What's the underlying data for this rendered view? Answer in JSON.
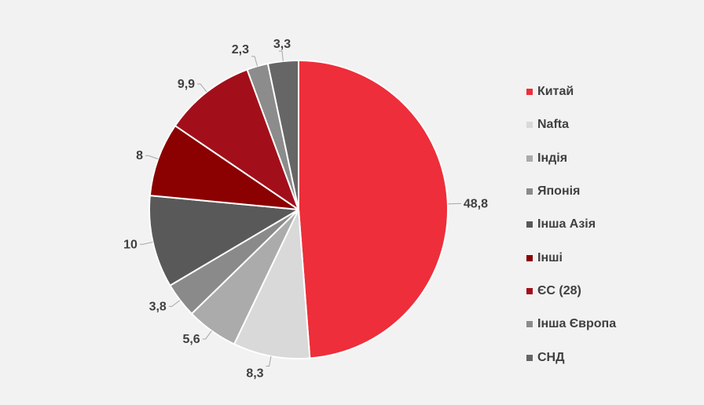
{
  "chart_data": {
    "type": "pie",
    "title": "",
    "legend_position": "right",
    "slices": [
      {
        "name": "Китай",
        "value": 48.8,
        "label": "48,8",
        "color": "#ee2e3a"
      },
      {
        "name": "Nafta",
        "value": 8.3,
        "label": "8,3",
        "color": "#d9d9d9"
      },
      {
        "name": "Індія",
        "value": 5.6,
        "label": "5,6",
        "color": "#ababab"
      },
      {
        "name": "Японія",
        "value": 3.8,
        "label": "3,8",
        "color": "#8a8a8a"
      },
      {
        "name": "Інша Азія",
        "value": 10,
        "label": "10",
        "color": "#595959"
      },
      {
        "name": "Інші",
        "value": 8,
        "label": "8",
        "color": "#8b0000"
      },
      {
        "name": "ЄС (28)",
        "value": 9.9,
        "label": "9,9",
        "color": "#a20f1a"
      },
      {
        "name": "Інша Європа",
        "value": 2.3,
        "label": "2,3",
        "color": "#8c8c8c"
      },
      {
        "name": "СНД",
        "value": 3.3,
        "label": "3,3",
        "color": "#666666"
      }
    ]
  }
}
